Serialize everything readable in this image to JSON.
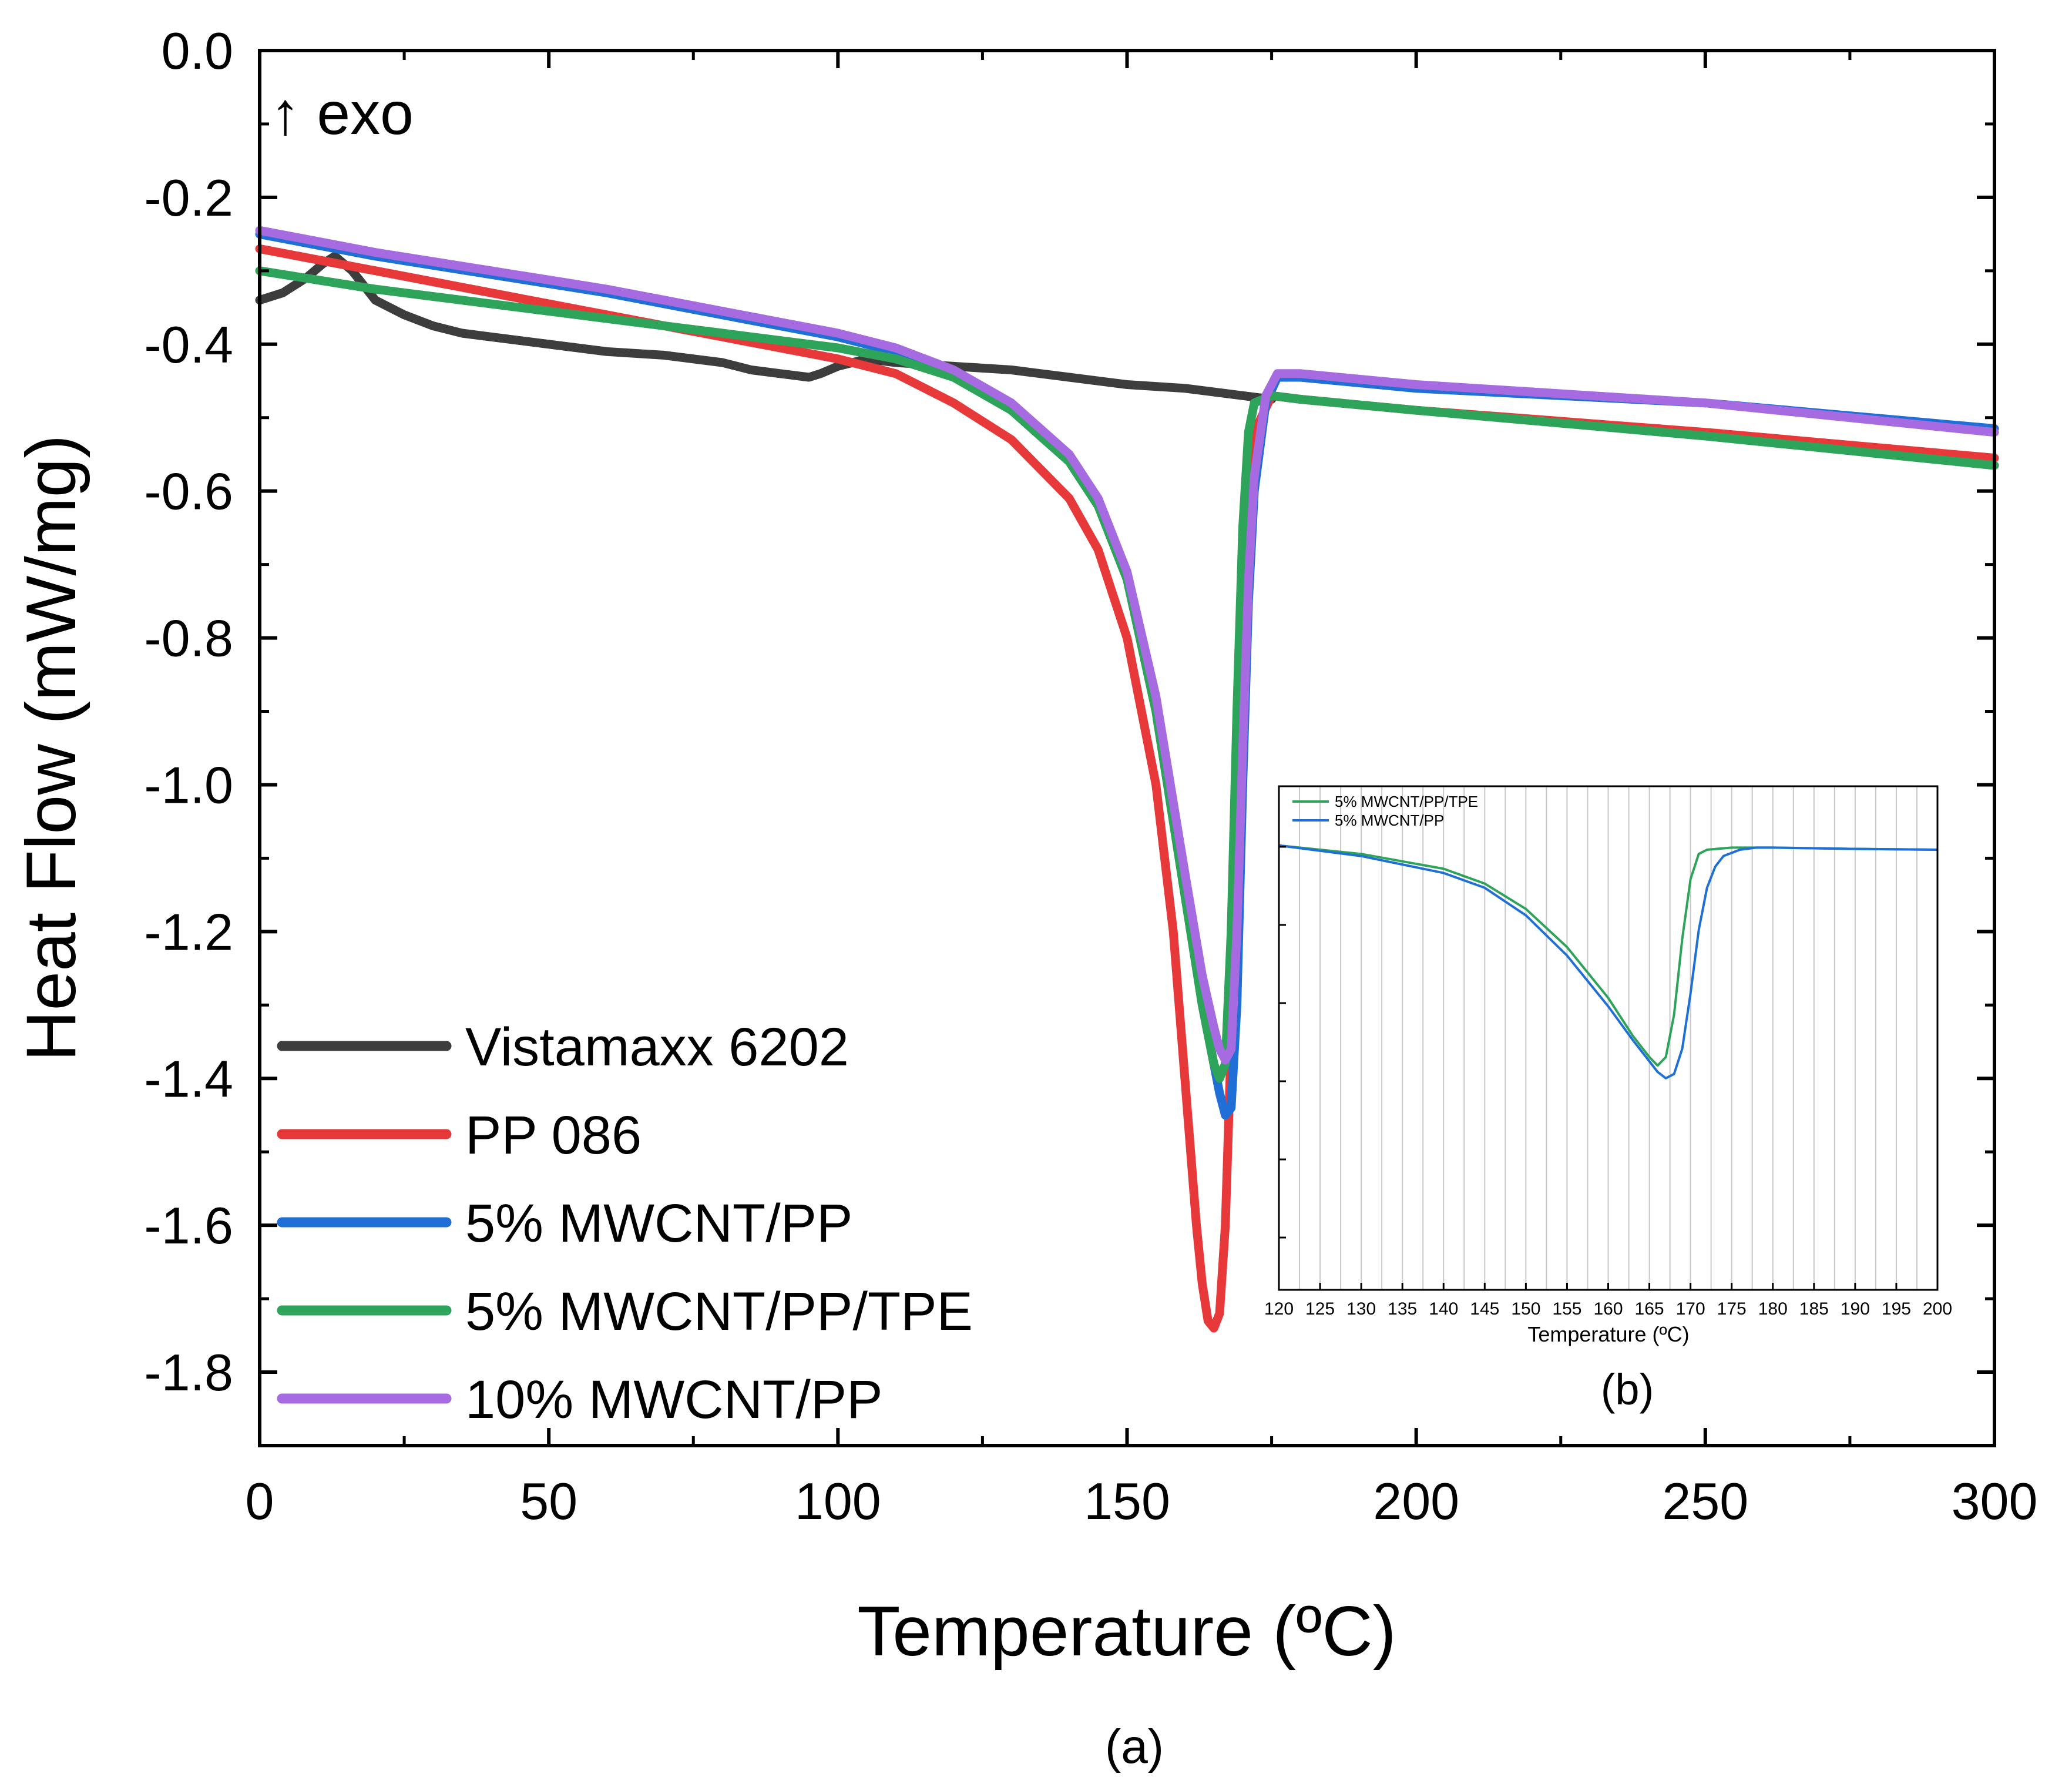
{
  "annotation": "↑ exo",
  "panel_labels": {
    "main": "(a)",
    "inset": "(b)"
  },
  "colors": {
    "vistamaxx": "#3d3d3d",
    "pp086": "#e8393a",
    "mwcnt_pp": "#1f6fd6",
    "mwcnt_pp_tpe": "#2ea35a",
    "mwcnt10_pp": "#a66be0",
    "axis": "#000000",
    "inset_grid": "#c8c8c8"
  },
  "chart_data": [
    {
      "id": "main",
      "type": "line",
      "title": "",
      "xlabel": "Temperature (ºC)",
      "ylabel": "Heat Flow (mW/mg)",
      "xlim": [
        0,
        300
      ],
      "ylim": [
        -1.9,
        0.0
      ],
      "xticks": [
        0,
        50,
        100,
        150,
        200,
        250,
        300
      ],
      "xtick_labels": [
        "0",
        "50",
        "100",
        "150",
        "200",
        "250",
        "300"
      ],
      "yticks": [
        0.0,
        -0.2,
        -0.4,
        -0.6,
        -0.8,
        -1.0,
        -1.2,
        -1.4,
        -1.6,
        -1.8
      ],
      "ytick_labels": [
        "0.0",
        "-0.2",
        "-0.4",
        "-0.6",
        "-0.8",
        "-1.0",
        "-1.2",
        "-1.4",
        "-1.6",
        "-1.8"
      ],
      "legend_position": "bottom-left",
      "series": [
        {
          "name": "Vistamaxx 6202",
          "color_key": "vistamaxx",
          "x": [
            0,
            4,
            8,
            11,
            13,
            16,
            20,
            25,
            30,
            35,
            40,
            50,
            60,
            70,
            80,
            85,
            90,
            95,
            97,
            100,
            105,
            110,
            120,
            130,
            140,
            150,
            160,
            170,
            175
          ],
          "y": [
            -0.34,
            -0.33,
            -0.31,
            -0.29,
            -0.28,
            -0.3,
            -0.34,
            -0.36,
            -0.375,
            -0.385,
            -0.39,
            -0.4,
            -0.41,
            -0.415,
            -0.425,
            -0.435,
            -0.44,
            -0.445,
            -0.44,
            -0.43,
            -0.42,
            -0.425,
            -0.43,
            -0.435,
            -0.445,
            -0.455,
            -0.46,
            -0.47,
            -0.475
          ]
        },
        {
          "name": "PP 086",
          "color_key": "pp086",
          "x": [
            0,
            20,
            40,
            60,
            80,
            100,
            110,
            120,
            130,
            140,
            145,
            150,
            155,
            158,
            160,
            162,
            163,
            164,
            165,
            166,
            167,
            168,
            169,
            170,
            172,
            175,
            180,
            200,
            250,
            300
          ],
          "y": [
            -0.27,
            -0.3,
            -0.33,
            -0.36,
            -0.39,
            -0.42,
            -0.44,
            -0.48,
            -0.53,
            -0.61,
            -0.68,
            -0.8,
            -1.0,
            -1.2,
            -1.4,
            -1.6,
            -1.68,
            -1.73,
            -1.74,
            -1.72,
            -1.6,
            -1.35,
            -1.0,
            -0.7,
            -0.52,
            -0.47,
            -0.475,
            -0.49,
            -0.52,
            -0.555
          ]
        },
        {
          "name": "5% MWCNT/PP",
          "color_key": "mwcnt_pp",
          "x": [
            0,
            20,
            40,
            60,
            80,
            100,
            110,
            120,
            130,
            140,
            145,
            150,
            155,
            160,
            163,
            165,
            166,
            167,
            168,
            169,
            170,
            171,
            172,
            174,
            176,
            180,
            200,
            250,
            300
          ],
          "y": [
            -0.25,
            -0.28,
            -0.305,
            -0.33,
            -0.36,
            -0.39,
            -0.41,
            -0.44,
            -0.49,
            -0.56,
            -0.62,
            -0.72,
            -0.9,
            -1.15,
            -1.3,
            -1.38,
            -1.42,
            -1.45,
            -1.44,
            -1.3,
            -1.0,
            -0.75,
            -0.6,
            -0.48,
            -0.445,
            -0.445,
            -0.46,
            -0.48,
            -0.515
          ]
        },
        {
          "name": "5% MWCNT/PP/TPE",
          "color_key": "mwcnt_pp_tpe",
          "x": [
            0,
            20,
            40,
            60,
            80,
            100,
            110,
            120,
            130,
            140,
            145,
            150,
            155,
            160,
            163,
            165,
            166,
            167,
            168,
            169,
            170,
            171,
            172,
            175,
            180,
            200,
            250,
            300
          ],
          "y": [
            -0.3,
            -0.325,
            -0.345,
            -0.365,
            -0.385,
            -0.405,
            -0.42,
            -0.445,
            -0.49,
            -0.56,
            -0.62,
            -0.72,
            -0.9,
            -1.15,
            -1.3,
            -1.38,
            -1.4,
            -1.38,
            -1.2,
            -0.9,
            -0.65,
            -0.52,
            -0.48,
            -0.47,
            -0.475,
            -0.49,
            -0.525,
            -0.565
          ]
        },
        {
          "name": "10% MWCNT/PP",
          "color_key": "mwcnt10_pp",
          "x": [
            0,
            20,
            40,
            60,
            80,
            100,
            110,
            120,
            130,
            140,
            145,
            150,
            155,
            160,
            163,
            165,
            166,
            167,
            168,
            169,
            170,
            171,
            172,
            174,
            176,
            180,
            200,
            250,
            300
          ],
          "y": [
            -0.245,
            -0.275,
            -0.3,
            -0.325,
            -0.355,
            -0.385,
            -0.405,
            -0.435,
            -0.48,
            -0.55,
            -0.61,
            -0.71,
            -0.88,
            -1.12,
            -1.26,
            -1.33,
            -1.36,
            -1.375,
            -1.36,
            -1.2,
            -0.95,
            -0.72,
            -0.58,
            -0.47,
            -0.44,
            -0.44,
            -0.455,
            -0.48,
            -0.52
          ]
        }
      ]
    },
    {
      "id": "inset",
      "type": "line",
      "xlabel": "Temperature (ºC)",
      "xlim": [
        120,
        200
      ],
      "ylim": [
        -1.45,
        -0.26
      ],
      "xticks": [
        120,
        125,
        130,
        135,
        140,
        145,
        150,
        155,
        160,
        165,
        170,
        175,
        180,
        185,
        190,
        195,
        200
      ],
      "xtick_labels": [
        "120",
        "125",
        "130",
        "135",
        "140",
        "145",
        "150",
        "155",
        "160",
        "165",
        "170",
        "175",
        "180",
        "185",
        "190",
        "195",
        "200"
      ],
      "legend_position": "top-left",
      "series": [
        {
          "name": "5% MWCNT/PP/TPE",
          "color_key": "mwcnt_pp_tpe",
          "x": [
            120,
            130,
            140,
            145,
            150,
            155,
            160,
            163,
            165,
            166,
            167,
            168,
            169,
            170,
            171,
            172,
            175,
            180,
            190,
            200
          ],
          "y": [
            -0.4,
            -0.42,
            -0.455,
            -0.49,
            -0.55,
            -0.64,
            -0.76,
            -0.85,
            -0.9,
            -0.92,
            -0.9,
            -0.8,
            -0.62,
            -0.48,
            -0.42,
            -0.41,
            -0.405,
            -0.405,
            -0.408,
            -0.41
          ]
        },
        {
          "name": "5% MWCNT/PP",
          "color_key": "mwcnt_pp",
          "x": [
            120,
            130,
            140,
            145,
            150,
            155,
            160,
            163,
            165,
            166,
            167,
            168,
            169,
            170,
            171,
            172,
            173,
            174,
            176,
            178,
            180,
            190,
            200
          ],
          "y": [
            -0.4,
            -0.425,
            -0.465,
            -0.5,
            -0.565,
            -0.66,
            -0.78,
            -0.86,
            -0.91,
            -0.935,
            -0.95,
            -0.94,
            -0.88,
            -0.75,
            -0.6,
            -0.5,
            -0.45,
            -0.425,
            -0.41,
            -0.405,
            -0.405,
            -0.408,
            -0.41
          ]
        }
      ]
    }
  ]
}
